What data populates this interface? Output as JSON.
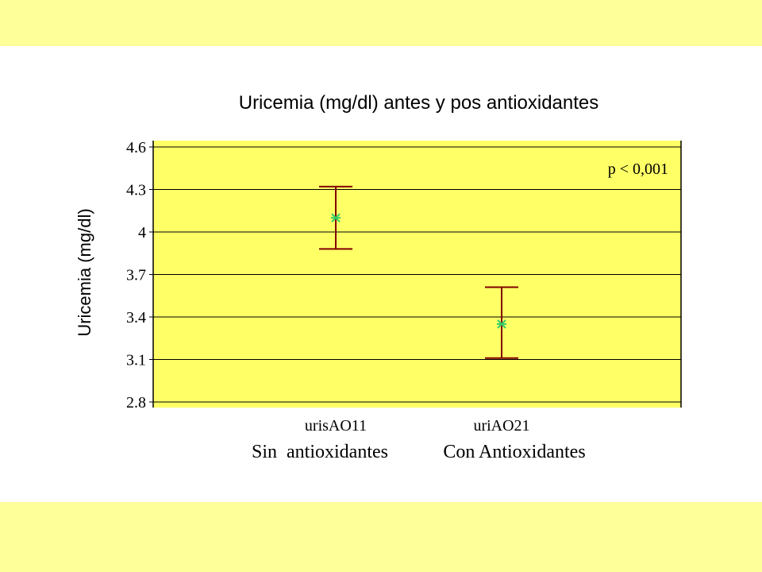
{
  "chart_data": {
    "type": "errorbar",
    "title": "Uricemia (mg/dl) antes y pos antioxidantes",
    "ylabel": "Uricemia (mg/dl)",
    "xlabel": "",
    "ylim": [
      2.8,
      4.6
    ],
    "yticks": [
      "4.6",
      "4.3",
      "4",
      "3.7",
      "3.4",
      "3.1",
      "2.8"
    ],
    "ytick_values": [
      4.6,
      4.3,
      4.0,
      3.7,
      3.4,
      3.1,
      2.8
    ],
    "grid": true,
    "categories": [
      "urisAO11",
      "uriAO21"
    ],
    "group_labels": [
      "Sin  antioxidantes",
      "Con Antioxidantes"
    ],
    "points": [
      {
        "category": "urisAO11",
        "mean": 4.1,
        "lower": 3.88,
        "upper": 4.32
      },
      {
        "category": "uriAO21",
        "mean": 3.35,
        "lower": 3.11,
        "upper": 3.61
      }
    ],
    "annotation": "p < 0,001",
    "plot_color": "#ffff66",
    "errorbar_color": "#800000",
    "marker_color": "#33cc66"
  }
}
